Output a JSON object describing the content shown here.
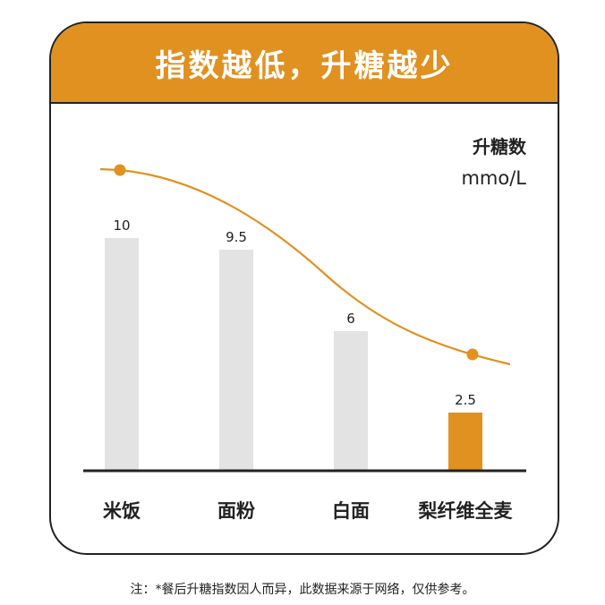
{
  "banner": {
    "title": "指数越低，升糖越少"
  },
  "chart_data": {
    "type": "bar",
    "categories": [
      "米饭",
      "面粉",
      "白面",
      "梨纤维全麦"
    ],
    "values": [
      10,
      9.5,
      6,
      2.5
    ],
    "value_labels": [
      "10",
      "9.5",
      "6",
      "2.5"
    ],
    "ylabel": "升糖数",
    "yunit": "mmo/L",
    "ylim": [
      0,
      10.5
    ],
    "highlight_index": 3,
    "colors": {
      "bar": "#e3e3e3",
      "highlight": "#e0911f",
      "curve": "#e0911f",
      "axis": "#222222"
    },
    "trend_curve": true,
    "grid": false
  },
  "footnote": "注：*餐后升糖指数因人而异，此数据来源于网络，仅供参考。"
}
